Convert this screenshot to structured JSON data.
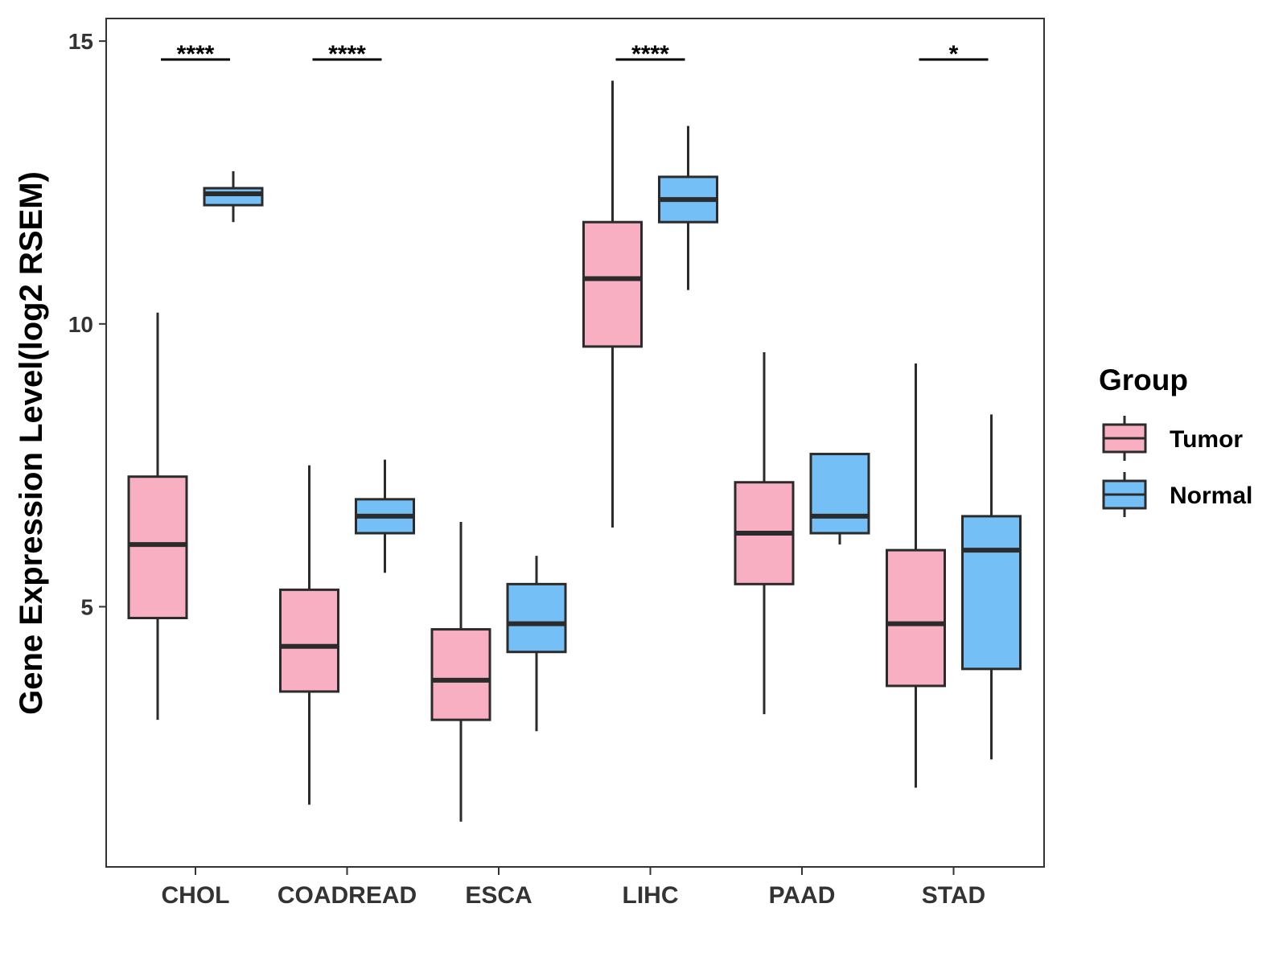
{
  "chart_data": {
    "type": "boxplot",
    "title": "",
    "xlabel": "",
    "ylabel": "Gene Expression Level(log2 RSEM)",
    "ylim": [
      0.4,
      15.4
    ],
    "yticks": [
      5,
      10,
      15
    ],
    "categories": [
      "CHOL",
      "COADREAD",
      "ESCA",
      "LIHC",
      "PAAD",
      "STAD"
    ],
    "groups": [
      {
        "name": "Tumor",
        "color": "#F9AFC2"
      },
      {
        "name": "Normal",
        "color": "#74BFF5"
      }
    ],
    "legend": {
      "title": "Group",
      "position": "right"
    },
    "series": [
      {
        "name": "Tumor",
        "boxes": [
          {
            "category": "CHOL",
            "min": 3.0,
            "q1": 4.8,
            "median": 6.1,
            "q3": 7.3,
            "max": 10.2
          },
          {
            "category": "COADREAD",
            "min": 1.5,
            "q1": 3.5,
            "median": 4.3,
            "q3": 5.3,
            "max": 7.5
          },
          {
            "category": "ESCA",
            "min": 1.2,
            "q1": 3.0,
            "median": 3.7,
            "q3": 4.6,
            "max": 6.5
          },
          {
            "category": "LIHC",
            "min": 6.4,
            "q1": 9.6,
            "median": 10.8,
            "q3": 11.8,
            "max": 14.3
          },
          {
            "category": "PAAD",
            "min": 3.1,
            "q1": 5.4,
            "median": 6.3,
            "q3": 7.2,
            "max": 9.5
          },
          {
            "category": "STAD",
            "min": 1.8,
            "q1": 3.6,
            "median": 4.7,
            "q3": 6.0,
            "max": 9.3
          }
        ]
      },
      {
        "name": "Normal",
        "boxes": [
          {
            "category": "CHOL",
            "min": 11.8,
            "q1": 12.1,
            "median": 12.3,
            "q3": 12.4,
            "max": 12.7
          },
          {
            "category": "COADREAD",
            "min": 5.6,
            "q1": 6.3,
            "median": 6.6,
            "q3": 6.9,
            "max": 7.6
          },
          {
            "category": "ESCA",
            "min": 2.8,
            "q1": 4.2,
            "median": 4.7,
            "q3": 5.4,
            "max": 5.9
          },
          {
            "category": "LIHC",
            "min": 10.6,
            "q1": 11.8,
            "median": 12.2,
            "q3": 12.6,
            "max": 13.5
          },
          {
            "category": "PAAD",
            "min": 6.1,
            "q1": 6.3,
            "median": 6.6,
            "q3": 7.7,
            "max": 7.7
          },
          {
            "category": "STAD",
            "min": 2.3,
            "q1": 3.9,
            "median": 6.0,
            "q3": 6.6,
            "max": 8.4
          }
        ]
      }
    ],
    "significance": [
      {
        "category": "CHOL",
        "label": "****"
      },
      {
        "category": "COADREAD",
        "label": "****"
      },
      {
        "category": "ESCA",
        "label": ""
      },
      {
        "category": "LIHC",
        "label": "****"
      },
      {
        "category": "PAAD",
        "label": ""
      },
      {
        "category": "STAD",
        "label": "*"
      }
    ]
  }
}
